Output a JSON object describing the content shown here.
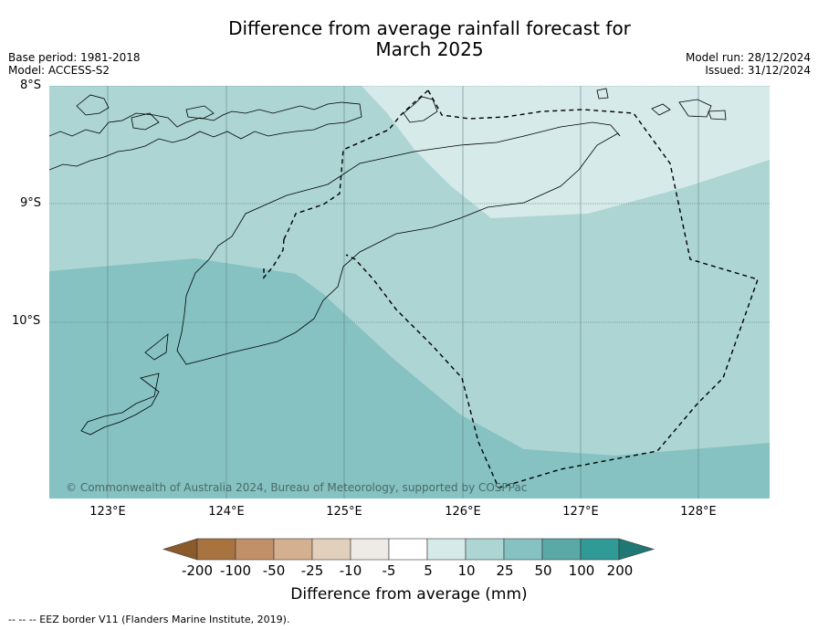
{
  "title_line1": "Difference from average rainfall forecast for",
  "title_line2": "March 2025",
  "base_period": "Base period: 1981-2018",
  "model": "Model: ACCESS-S2",
  "model_run": "Model run: 28/12/2024",
  "issued": "Issued: 31/12/2024",
  "lat_labels": [
    "8°S",
    "9°S",
    "10°S"
  ],
  "lon_labels": [
    "123°E",
    "124°E",
    "125°E",
    "126°E",
    "127°E",
    "128°E"
  ],
  "copyright": "© Commonwealth of Australia 2024, Bureau of Meteorology, supported by COSPPac",
  "legend": {
    "title": "Difference from average (mm)",
    "ticks": [
      "-200",
      "-100",
      "-50",
      "-25",
      "-10",
      "-5",
      "5",
      "10",
      "25",
      "50",
      "100",
      "200"
    ],
    "colors": {
      "below_200": "#8b5a2b",
      "m200_m100": "#a8733f",
      "m100_m50": "#c19068",
      "m50_m25": "#d4b090",
      "m25_m10": "#e2d0bc",
      "m10_m5": "#eeebe6",
      "m5_5": "#ffffff",
      "5_10": "#d5eae9",
      "10_25": "#acd5d4",
      "25_50": "#85c2c1",
      "50_100": "#5aa9a7",
      "100_200": "#2f9a96",
      "above_200": "#1f7874"
    }
  },
  "eez_note": "-- -- -- EEZ border V11 (Flanders Marine Institute, 2019)."
}
